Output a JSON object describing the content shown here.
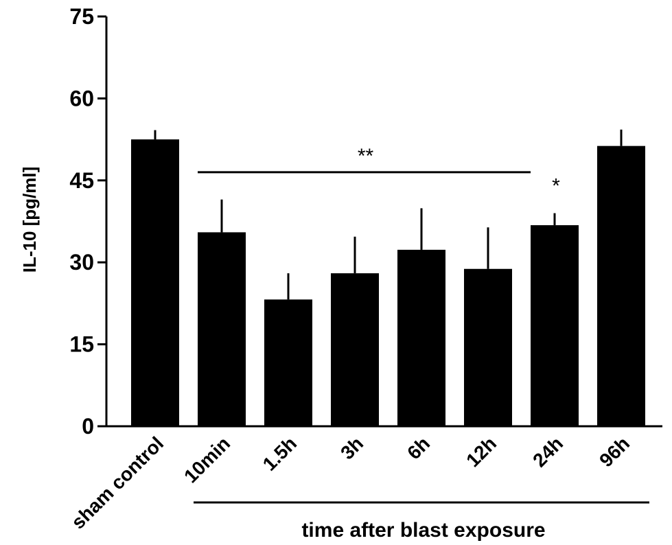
{
  "chart_data": {
    "type": "bar",
    "ylabel": "IL-10 [pg/ml]",
    "xlabel": "time after blast exposure",
    "ylim": [
      0,
      75
    ],
    "yticks": [
      "0",
      "15",
      "30",
      "45",
      "60",
      "75"
    ],
    "categories": [
      "sham control",
      "10min",
      "1.5h",
      "3h",
      "6h",
      "12h",
      "24h",
      "96h"
    ],
    "values": [
      52.5,
      35.5,
      23.2,
      28.0,
      32.3,
      28.8,
      36.8,
      51.3
    ],
    "errors": [
      1.7,
      6.0,
      4.8,
      6.7,
      7.6,
      7.6,
      2.2,
      3.0
    ],
    "bar_color": "#000000",
    "annotations": [
      {
        "text": "**",
        "type": "bracket",
        "from": "10min",
        "to": "24h",
        "y": 46.5,
        "text_y": 51
      },
      {
        "text": "*",
        "type": "marker",
        "category": "24h",
        "y": 44.8
      }
    ],
    "xlabel_bracket": {
      "from": "10min",
      "to": "96h"
    },
    "grid": false,
    "legend": "none"
  }
}
